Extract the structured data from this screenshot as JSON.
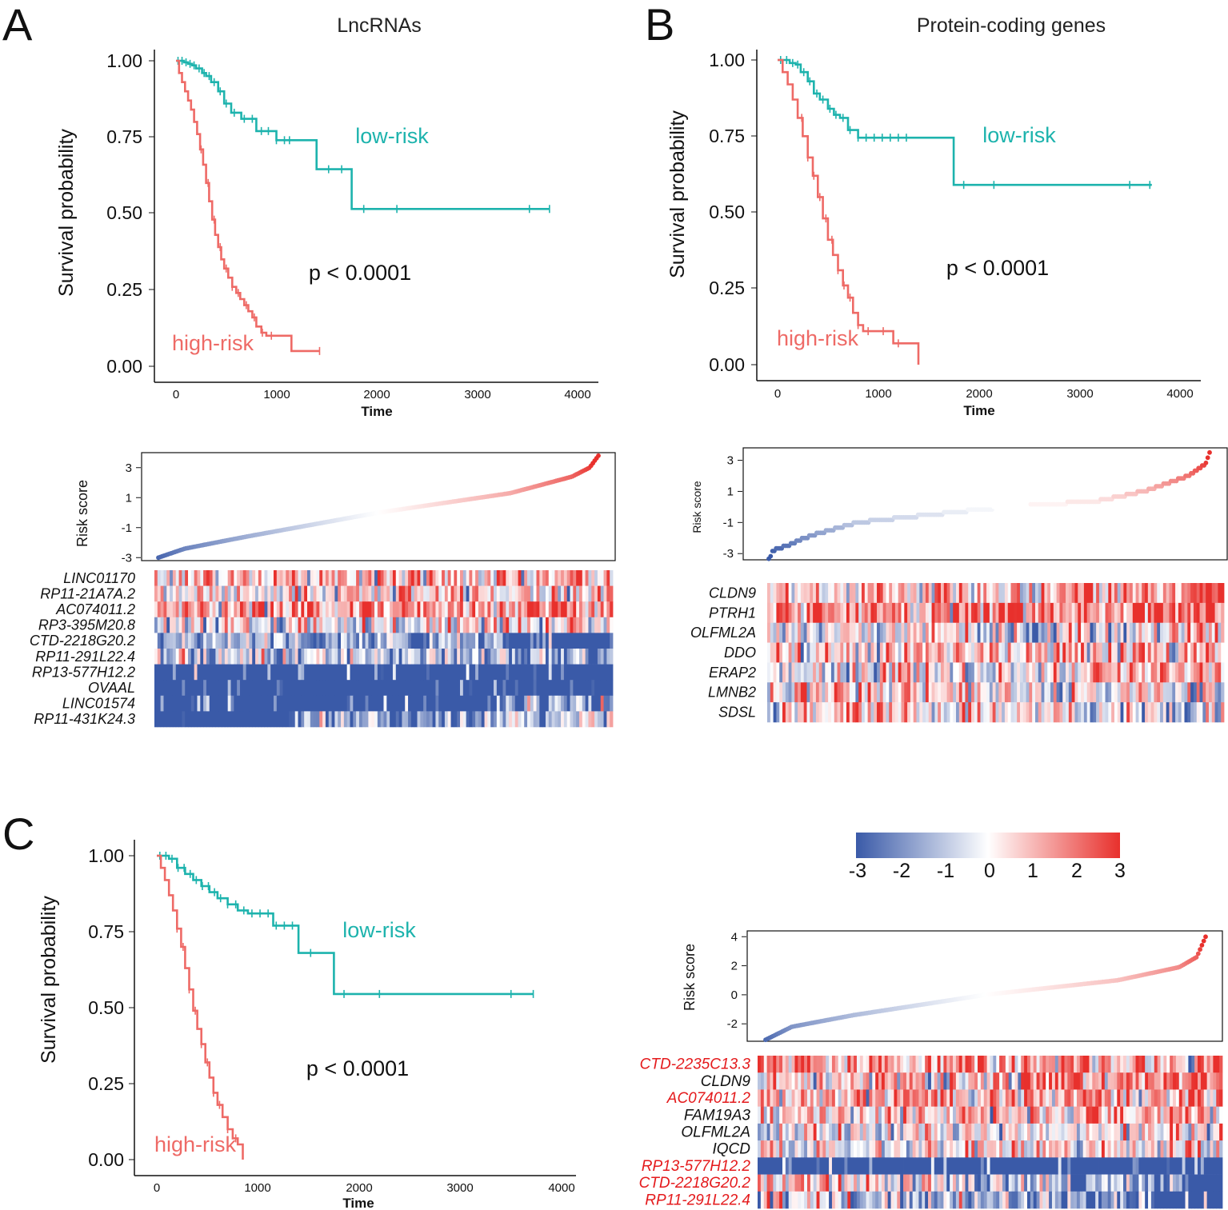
{
  "colors": {
    "low_risk": "#1db3ad",
    "high_risk": "#ee6a66",
    "heat_low": "#3a5aa8",
    "heat_mid": "#ffffff",
    "heat_high": "#e8302c",
    "lnc_gene": "#111111",
    "lnc_gene_combined": "#e41a1c"
  },
  "panels": {
    "A": {
      "letter": "A",
      "title": "LncRNAs"
    },
    "B": {
      "letter": "B",
      "title": "Protein-coding genes"
    },
    "C": {
      "letter": "C",
      "title": ""
    }
  },
  "colorbar": {
    "ticks": [
      "-3",
      "-2",
      "-1",
      "0",
      "1",
      "2",
      "3"
    ],
    "range": [
      -3,
      3
    ]
  },
  "chart_data": [
    {
      "id": "A_km",
      "type": "line",
      "subtype": "kaplan-meier",
      "title": "LncRNAs",
      "xlabel": "Time",
      "ylabel": "Survival probability",
      "xlim": [
        0,
        4000
      ],
      "ylim": [
        0,
        1
      ],
      "x_ticks": [
        "0",
        "1000",
        "2000",
        "3000",
        "4000"
      ],
      "y_ticks": [
        "0.00",
        "0.25",
        "0.50",
        "0.75",
        "1.00"
      ],
      "p_value": "p < 0.0001",
      "series": [
        {
          "name": "low-risk",
          "color_key": "low_risk",
          "x": [
            0,
            40,
            80,
            120,
            160,
            200,
            260,
            300,
            350,
            420,
            480,
            550,
            650,
            800,
            1000,
            1200,
            1400,
            1400,
            1750,
            1750,
            3720
          ],
          "y": [
            1.0,
            1.0,
            0.995,
            0.99,
            0.985,
            0.975,
            0.96,
            0.95,
            0.93,
            0.9,
            0.86,
            0.83,
            0.81,
            0.77,
            0.74,
            0.74,
            0.74,
            0.645,
            0.645,
            0.515,
            0.515
          ],
          "censor_x": [
            20,
            60,
            100,
            140,
            180,
            230,
            280,
            330,
            380,
            440,
            500,
            580,
            680,
            760,
            850,
            920,
            1000,
            1080,
            1130,
            1520,
            1650,
            1870,
            2200,
            3520,
            3720
          ]
        },
        {
          "name": "high-risk",
          "color_key": "high_risk",
          "x": [
            0,
            30,
            60,
            90,
            120,
            150,
            180,
            210,
            240,
            270,
            300,
            330,
            360,
            390,
            420,
            450,
            480,
            520,
            560,
            600,
            640,
            680,
            720,
            760,
            800,
            850,
            900,
            1000,
            1150,
            1150,
            1430
          ],
          "y": [
            1.0,
            0.96,
            0.93,
            0.9,
            0.87,
            0.84,
            0.8,
            0.76,
            0.71,
            0.66,
            0.6,
            0.54,
            0.48,
            0.43,
            0.39,
            0.35,
            0.32,
            0.29,
            0.26,
            0.24,
            0.22,
            0.2,
            0.18,
            0.16,
            0.13,
            0.11,
            0.1,
            0.1,
            0.1,
            0.05,
            0.05
          ],
          "censor_x": [
            250,
            320,
            380,
            440,
            500,
            560,
            620,
            700,
            780,
            860,
            950,
            1430
          ]
        }
      ]
    },
    {
      "id": "B_km",
      "type": "line",
      "subtype": "kaplan-meier",
      "title": "Protein-coding genes",
      "xlabel": "Time",
      "ylabel": "Survival probability",
      "xlim": [
        0,
        4000
      ],
      "ylim": [
        0,
        1
      ],
      "x_ticks": [
        "0",
        "1000",
        "2000",
        "3000",
        "4000"
      ],
      "y_ticks": [
        "0.00",
        "0.25",
        "0.50",
        "0.75",
        "1.00"
      ],
      "p_value": "p < 0.0001",
      "series": [
        {
          "name": "low-risk",
          "color_key": "low_risk",
          "x": [
            0,
            60,
            120,
            180,
            230,
            300,
            360,
            420,
            500,
            560,
            620,
            700,
            800,
            1000,
            1200,
            1500,
            1750,
            1750,
            3720
          ],
          "y": [
            1.0,
            1.0,
            0.99,
            0.985,
            0.96,
            0.93,
            0.89,
            0.87,
            0.84,
            0.82,
            0.81,
            0.77,
            0.745,
            0.745,
            0.745,
            0.745,
            0.745,
            0.59,
            0.59
          ],
          "censor_x": [
            30,
            90,
            150,
            200,
            260,
            320,
            390,
            450,
            520,
            580,
            650,
            720,
            800,
            880,
            960,
            1040,
            1120,
            1200,
            1280,
            1850,
            2150,
            3500,
            3700
          ]
        },
        {
          "name": "high-risk",
          "color_key": "high_risk",
          "x": [
            0,
            50,
            100,
            150,
            200,
            250,
            300,
            350,
            400,
            450,
            500,
            550,
            600,
            650,
            700,
            750,
            800,
            850,
            1000,
            1150,
            1150,
            1400,
            1400
          ],
          "y": [
            1.0,
            0.96,
            0.92,
            0.87,
            0.81,
            0.75,
            0.68,
            0.62,
            0.55,
            0.48,
            0.41,
            0.36,
            0.31,
            0.26,
            0.22,
            0.17,
            0.13,
            0.11,
            0.11,
            0.11,
            0.07,
            0.07,
            0.0
          ],
          "censor_x": [
            240,
            300,
            360,
            420,
            480,
            540,
            600,
            660,
            720,
            800,
            900,
            1050,
            1200
          ]
        }
      ]
    },
    {
      "id": "C_km",
      "type": "line",
      "subtype": "kaplan-meier",
      "title": "",
      "xlabel": "Time",
      "ylabel": "Survival probability",
      "xlim": [
        0,
        4000
      ],
      "ylim": [
        0,
        1
      ],
      "x_ticks": [
        "0",
        "1000",
        "2000",
        "3000",
        "4000"
      ],
      "y_ticks": [
        "0.00",
        "0.25",
        "0.50",
        "0.75",
        "1.00"
      ],
      "p_value": "p < 0.0001",
      "series": [
        {
          "name": "low-risk",
          "color_key": "low_risk",
          "x": [
            0,
            60,
            120,
            200,
            280,
            360,
            440,
            520,
            600,
            700,
            800,
            900,
            1000,
            1150,
            1150,
            1400,
            1400,
            1750,
            1750,
            3720
          ],
          "y": [
            1.0,
            1.0,
            0.99,
            0.96,
            0.94,
            0.92,
            0.9,
            0.88,
            0.86,
            0.84,
            0.82,
            0.81,
            0.81,
            0.81,
            0.77,
            0.77,
            0.68,
            0.68,
            0.545,
            0.545
          ],
          "censor_x": [
            30,
            90,
            150,
            210,
            270,
            330,
            390,
            450,
            510,
            570,
            630,
            700,
            780,
            860,
            940,
            1020,
            1100,
            1180,
            1260,
            1340,
            1520,
            1850,
            2200,
            3500,
            3720
          ]
        },
        {
          "name": "high-risk",
          "color_key": "high_risk",
          "x": [
            0,
            40,
            80,
            120,
            160,
            200,
            240,
            280,
            320,
            360,
            400,
            440,
            480,
            520,
            560,
            600,
            650,
            700,
            750,
            800,
            850,
            850
          ],
          "y": [
            1.0,
            0.96,
            0.92,
            0.87,
            0.82,
            0.76,
            0.7,
            0.63,
            0.56,
            0.49,
            0.43,
            0.38,
            0.32,
            0.27,
            0.22,
            0.18,
            0.14,
            0.1,
            0.07,
            0.05,
            0.05,
            0.0
          ],
          "censor_x": [
            200,
            260,
            320,
            380,
            440,
            500,
            560,
            620,
            700,
            780
          ]
        }
      ]
    },
    {
      "id": "A_risk",
      "type": "scatter",
      "ylabel": "Risk score",
      "ylim": [
        -3.2,
        4.0
      ],
      "y_ticks": [
        -3,
        -1,
        1,
        3
      ],
      "n_points": 240,
      "quantiles_t": [
        0,
        0.02,
        0.06,
        0.2,
        0.5,
        0.8,
        0.94,
        0.98,
        1.0
      ],
      "quantiles_v": [
        -3.0,
        -2.8,
        -2.4,
        -1.6,
        0.0,
        1.3,
        2.4,
        3.0,
        3.8
      ]
    },
    {
      "id": "B_risk",
      "type": "scatter",
      "ylabel": "Risk score",
      "ylim": [
        -3.4,
        3.8
      ],
      "y_ticks": [
        -3,
        -1,
        1,
        3
      ],
      "n_points": 240,
      "quantiles_t": [
        0,
        0.01,
        0.03,
        0.1,
        0.2,
        0.5,
        0.75,
        0.85,
        0.95,
        0.99,
        1.0
      ],
      "quantiles_v": [
        -3.3,
        -2.8,
        -2.6,
        -1.8,
        -1.0,
        -0.1,
        0.4,
        1.0,
        2.0,
        2.8,
        3.5
      ],
      "steps": true
    },
    {
      "id": "C_risk",
      "type": "scatter",
      "ylabel": "Risk score",
      "ylim": [
        -3.2,
        4.4
      ],
      "y_ticks": [
        -2,
        0,
        2,
        4
      ],
      "n_points": 240,
      "quantiles_t": [
        0,
        0.02,
        0.06,
        0.2,
        0.5,
        0.8,
        0.94,
        0.98,
        1.0
      ],
      "quantiles_v": [
        -3.1,
        -2.8,
        -2.2,
        -1.4,
        0.0,
        1.0,
        1.9,
        2.6,
        4.0
      ]
    },
    {
      "id": "A_heat",
      "type": "heatmap",
      "scale": [
        -3,
        3
      ],
      "n_cols": 150,
      "genes": [
        "LINC01170",
        "RP11-21A7A.2",
        "AC074011.2",
        "RP3-395M20.8",
        "CTD-2218G20.2",
        "RP11-291L22.4",
        "RP13-577H12.2",
        "OVAAL",
        "LINC01574",
        "RP11-431K24.3"
      ],
      "gene_types": [
        "lnc",
        "lnc",
        "lnc",
        "lnc",
        "lnc",
        "lnc",
        "lnc",
        "lnc",
        "lnc",
        "lnc"
      ],
      "row_mean_start": [
        0.8,
        0.2,
        1.4,
        -0.3,
        -1.0,
        -0.6,
        -2.5,
        -2.6,
        -2.6,
        -2.4
      ],
      "row_mean_end": [
        0.9,
        0.8,
        1.8,
        0.4,
        -2.3,
        -2.0,
        -2.8,
        -2.2,
        -1.8,
        -1.0
      ]
    },
    {
      "id": "B_heat",
      "type": "heatmap",
      "scale": [
        -3,
        3
      ],
      "n_cols": 150,
      "genes": [
        "CLDN9",
        "PTRH1",
        "OLFML2A",
        "DDO",
        "ERAP2",
        "LMNB2",
        "SDSL"
      ],
      "gene_types": [
        "coding",
        "coding",
        "coding",
        "coding",
        "coding",
        "coding",
        "coding"
      ],
      "row_mean_start": [
        0.6,
        1.6,
        -0.6,
        0.3,
        -0.3,
        0.8,
        0.6
      ],
      "row_mean_end": [
        1.6,
        2.0,
        0.6,
        1.2,
        1.2,
        -0.2,
        -0.6
      ]
    },
    {
      "id": "C_heat",
      "type": "heatmap",
      "scale": [
        -3,
        3
      ],
      "n_cols": 150,
      "genes": [
        "CTD-2235C13.3",
        "CLDN9",
        "AC074011.2",
        "FAM19A3",
        "OLFML2A",
        "IQCD",
        "RP13-577H12.2",
        "CTD-2218G20.2",
        "RP11-291L22.4"
      ],
      "gene_types": [
        "lnc",
        "coding",
        "lnc",
        "coding",
        "coding",
        "coding",
        "lnc",
        "lnc",
        "lnc"
      ],
      "row_mean_start": [
        1.2,
        0.8,
        1.0,
        0.2,
        -0.5,
        -0.2,
        -2.8,
        0.6,
        0.2
      ],
      "row_mean_end": [
        1.8,
        1.4,
        1.6,
        1.2,
        0.4,
        0.6,
        -2.9,
        -2.2,
        -2.4
      ]
    }
  ]
}
